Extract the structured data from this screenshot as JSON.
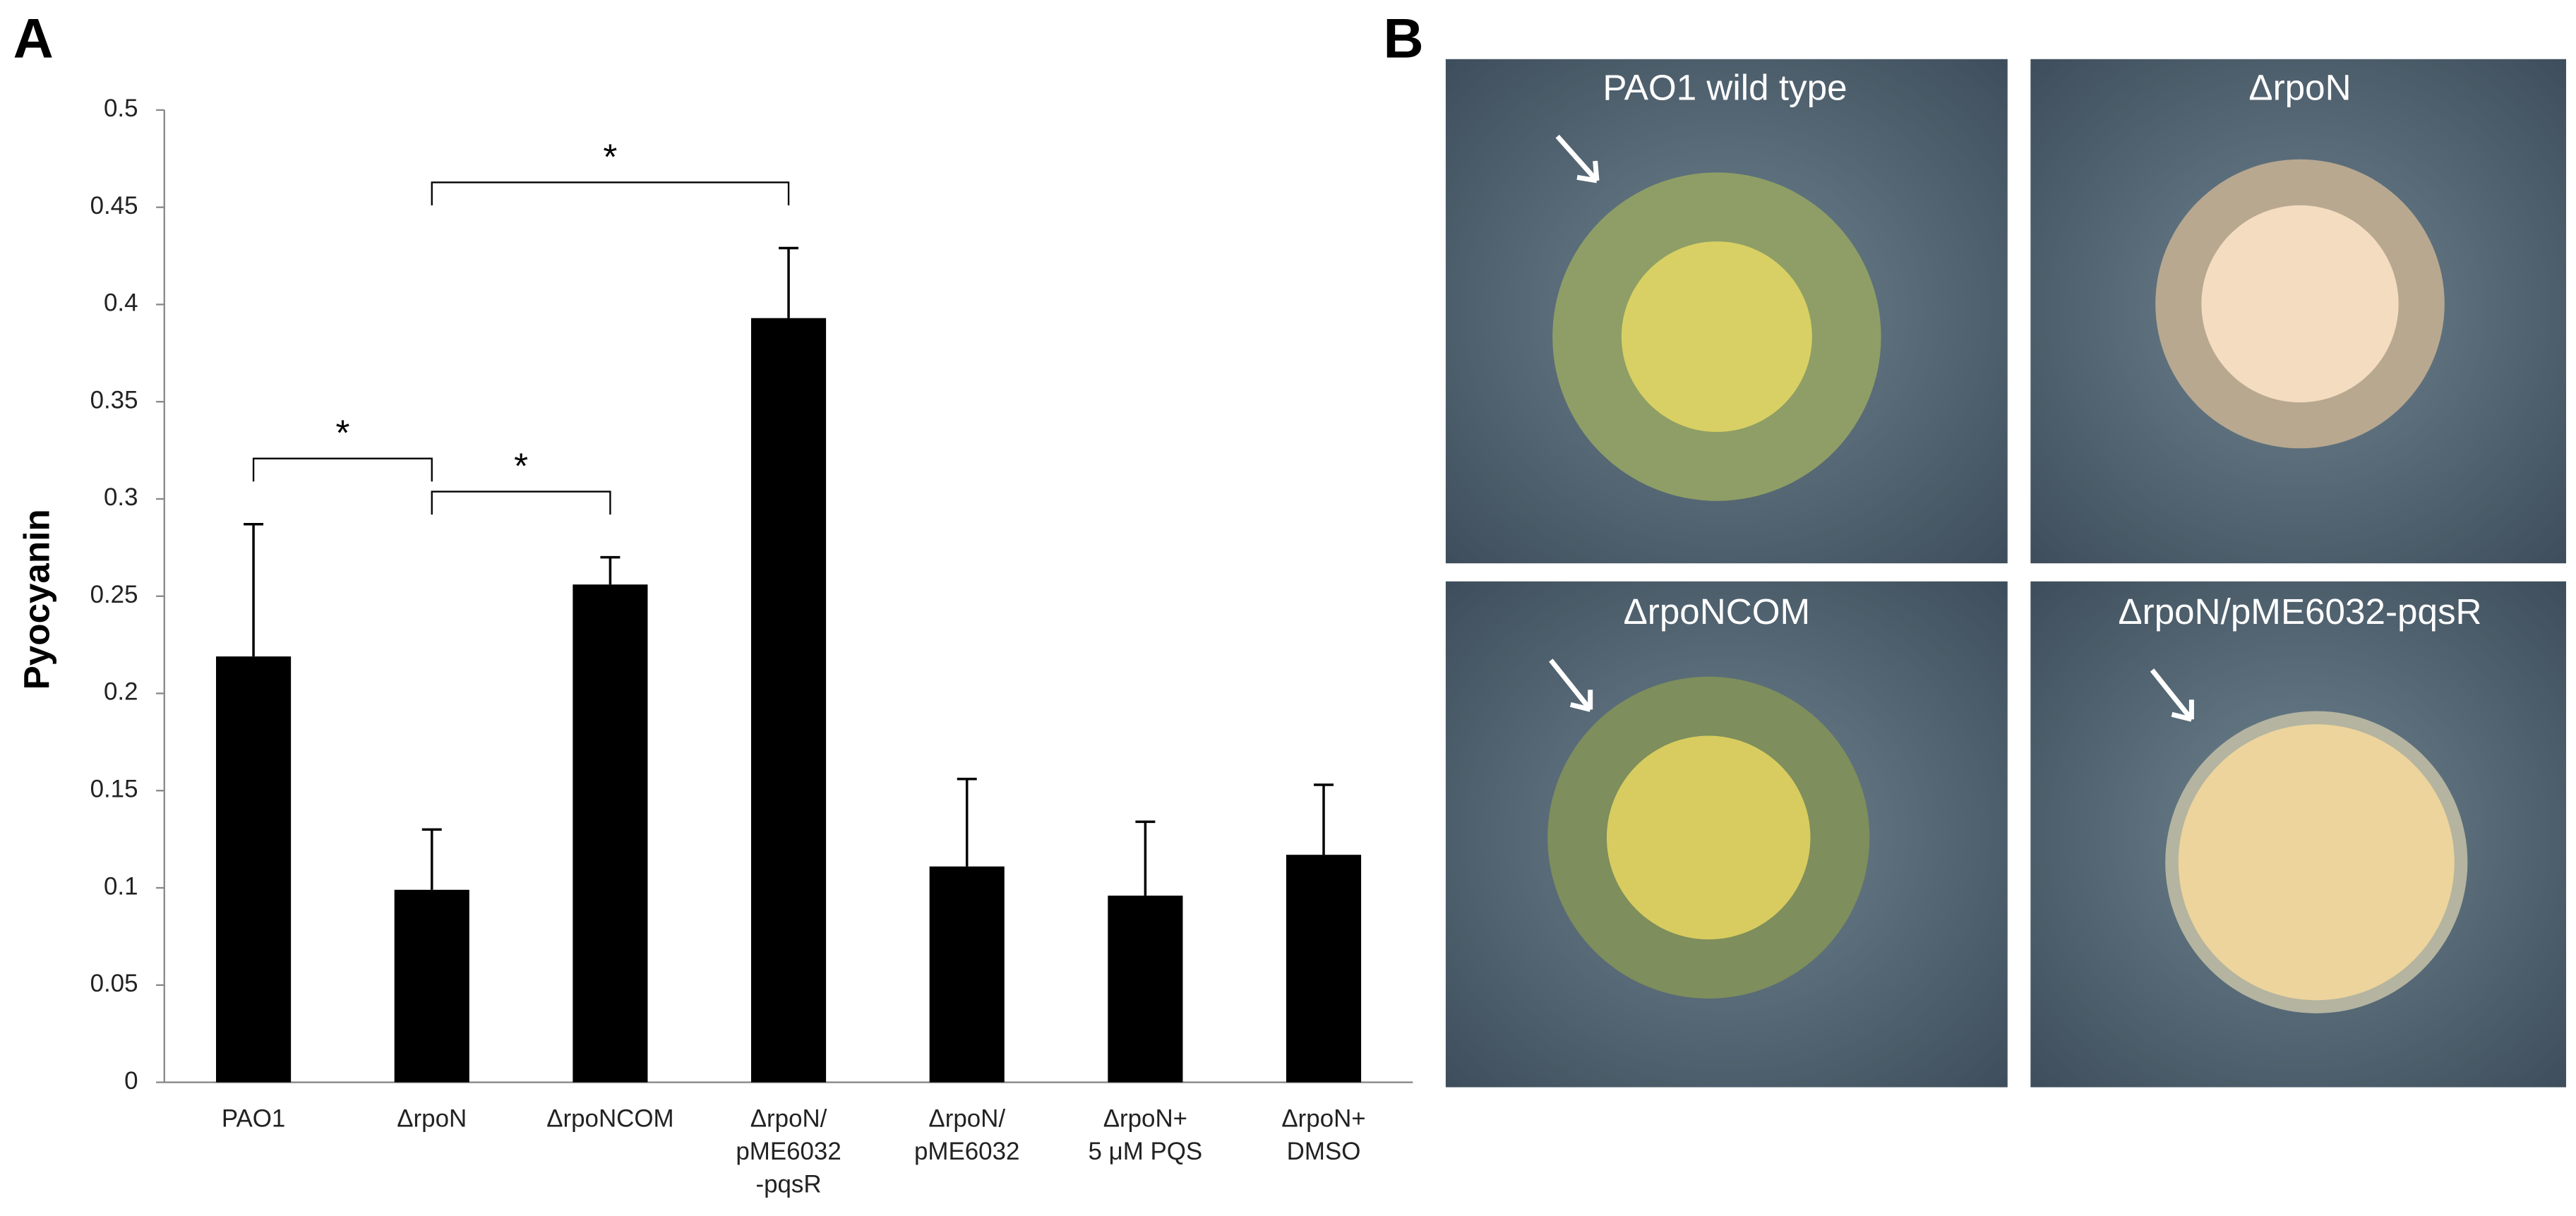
{
  "panel_letters": [
    "A",
    "B"
  ],
  "chart_data": {
    "type": "bar",
    "ylabel": "Pyocyanin",
    "categories": [
      [
        "PAO1"
      ],
      [
        "ΔrpoN"
      ],
      [
        "ΔrpoNCOM"
      ],
      [
        "ΔrpoN/",
        "pME6032",
        "-pqsR"
      ],
      [
        "ΔrpoN/",
        "pME6032"
      ],
      [
        "ΔrpoN+",
        "5 μM PQS"
      ],
      [
        "ΔrpoN+",
        "DMSO"
      ]
    ],
    "values": [
      0.219,
      0.099,
      0.256,
      0.393,
      0.111,
      0.096,
      0.117
    ],
    "errors": [
      0.068,
      0.031,
      0.014,
      0.036,
      0.045,
      0.038,
      0.036
    ],
    "color": "#000000",
    "ylim": [
      0,
      0.5
    ],
    "yticks": [
      0,
      0.05,
      0.1,
      0.15,
      0.2,
      0.25,
      0.3,
      0.35,
      0.4,
      0.45,
      0.5
    ],
    "significance": [
      {
        "pair": [
          0,
          1
        ],
        "label": "*"
      },
      {
        "pair": [
          1,
          2
        ],
        "label": "*"
      },
      {
        "pair": [
          1,
          3
        ],
        "label": "*"
      }
    ]
  },
  "photos": [
    {
      "label": "PAO1 wild type"
    },
    {
      "label": "ΔrpoN"
    },
    {
      "label": "ΔrpoNCOM"
    },
    {
      "label": "ΔrpoN/pME6032-pqsR"
    }
  ]
}
